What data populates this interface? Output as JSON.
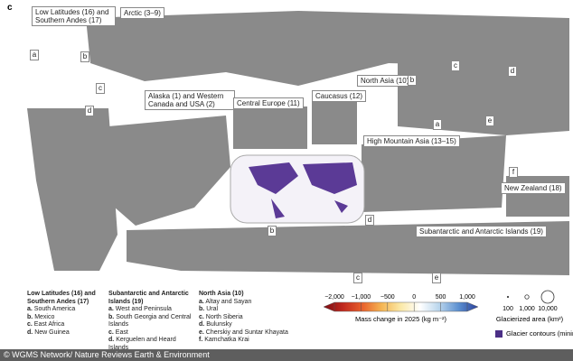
{
  "panel_label": "c",
  "regions": [
    "Low Latitudes (16) and Southern Andes (17)",
    "Arctic (3–9)",
    "Alaska (1) and Western Canada and USA (2)",
    "Central Europe (11)",
    "Caucasus (12)",
    "North Asia (10)",
    "High Mountain Asia (13–15)",
    "New Zealand (18)",
    "Subantarctic and Antarctic Islands (19)"
  ],
  "inset_letters": [
    "a",
    "b",
    "c",
    "d",
    "b",
    "d",
    "c",
    "e",
    "c",
    "d",
    "b",
    "a",
    "e",
    "f"
  ],
  "legend": {
    "groups": [
      {
        "title": "Low Latitudes (16) and Southern Andes (17)",
        "items": [
          {
            "letter": "a.",
            "text": "South America"
          },
          {
            "letter": "b.",
            "text": "Mexico"
          },
          {
            "letter": "c.",
            "text": "East Africa"
          },
          {
            "letter": "d.",
            "text": "New Guinea"
          }
        ]
      },
      {
        "title": "Subantarctic and Antarctic Islands (19)",
        "items": [
          {
            "letter": "a.",
            "text": "West and Peninsula"
          },
          {
            "letter": "b.",
            "text": "South Georgia and Central Islands"
          },
          {
            "letter": "c.",
            "text": "East"
          },
          {
            "letter": "d.",
            "text": "Kerguelen and Heard Islands"
          }
        ]
      },
      {
        "title": "North Asia (10)",
        "items": [
          {
            "letter": "a.",
            "text": "Altay and Sayan"
          },
          {
            "letter": "b.",
            "text": "Ural"
          },
          {
            "letter": "c.",
            "text": "North Siberia"
          },
          {
            "letter": "d.",
            "text": "Bulunsky"
          },
          {
            "letter": "e.",
            "text": "Cherskiy and Suntar Khayata"
          },
          {
            "letter": "f.",
            "text": "Kamchatka Krai"
          }
        ]
      }
    ],
    "colorbar": {
      "title": "Mass change in 2025 (kg m⁻²)",
      "colors": [
        "#7a0c12",
        "#c0281e",
        "#e8602c",
        "#f5b552",
        "#fbe9a8",
        "#ffffff",
        "#b8d4ec",
        "#5b8fd0",
        "#2a3f9a"
      ],
      "ticks": [
        {
          "value": -2000,
          "label": "−2,000"
        },
        {
          "value": -1000,
          "label": "−1,000"
        },
        {
          "value": -500,
          "label": "−500"
        },
        0,
        500,
        {
          "value": 1000,
          "label": "1,000"
        }
      ]
    },
    "size_legend": {
      "title": "Glacierized area (km²)",
      "sizes": [
        100,
        {
          "value": 1000,
          "label": "1,000"
        },
        {
          "value": 10000,
          "label": "10,000"
        }
      ]
    },
    "contours_label": "Glacier contours (minimap)",
    "contours_color": "#4b2f86"
  },
  "credit": "© WGMS Network/ Nature Reviews Earth & Environment"
}
